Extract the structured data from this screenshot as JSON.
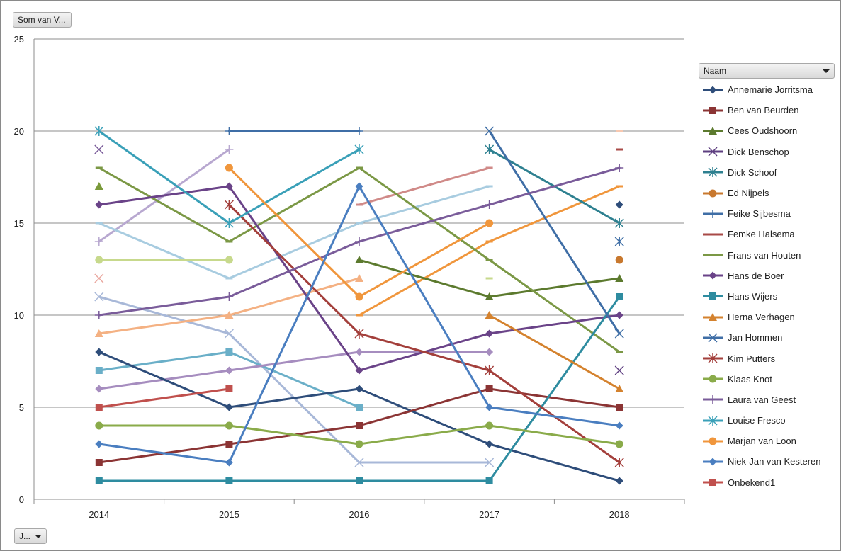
{
  "value_field_label": "Som van V...",
  "axis_field_label": "J...",
  "legend_field_label": "Naam",
  "chart_data": {
    "type": "line",
    "categories": [
      "2014",
      "2015",
      "2016",
      "2017",
      "2018"
    ],
    "ylim": [
      0,
      25
    ],
    "yticks": [
      "0",
      "5",
      "10",
      "15",
      "20",
      "25"
    ],
    "grid": true,
    "legend_position": "right",
    "series": [
      {
        "name": "Annemarie Jorritsma",
        "color": "#2e4d7a",
        "marker": "diamond",
        "values": [
          8,
          5,
          6,
          3,
          1
        ]
      },
      {
        "name": "Ben van Beurden",
        "color": "#8b3434",
        "marker": "square",
        "values": [
          2,
          3,
          4,
          6,
          5
        ]
      },
      {
        "name": "Cees Oudshoorn",
        "color": "#5c7a2e",
        "marker": "triangle",
        "values": [
          null,
          null,
          13,
          11,
          12
        ]
      },
      {
        "name": "Dick Benschop",
        "color": "#5e3f80",
        "marker": "x",
        "values": [
          null,
          null,
          null,
          null,
          7
        ]
      },
      {
        "name": "Dick Schoof",
        "color": "#2e8090",
        "marker": "star",
        "values": [
          null,
          null,
          null,
          19,
          15
        ]
      },
      {
        "name": "Ed Nijpels",
        "color": "#c8782e",
        "marker": "circle",
        "values": [
          null,
          null,
          null,
          null,
          13
        ]
      },
      {
        "name": "Feike Sijbesma",
        "color": "#3f6ea6",
        "marker": "plus",
        "values": [
          null,
          20,
          20,
          null,
          null
        ]
      },
      {
        "name": "Femke Halsema",
        "color": "#a84a47",
        "marker": "dash",
        "values": [
          null,
          null,
          null,
          null,
          19
        ]
      },
      {
        "name": "Frans van Houten",
        "color": "#7b9845",
        "marker": "dash",
        "values": [
          18,
          14,
          18,
          13,
          8
        ]
      },
      {
        "name": "Hans de Boer",
        "color": "#6a4388",
        "marker": "diamond",
        "values": [
          16,
          17,
          7,
          9,
          10
        ]
      },
      {
        "name": "Hans Wijers",
        "color": "#2e8ca0",
        "marker": "square",
        "values": [
          1,
          1,
          1,
          1,
          11
        ]
      },
      {
        "name": "Herna Verhagen",
        "color": "#d4822e",
        "marker": "triangle",
        "values": [
          null,
          null,
          null,
          10,
          6
        ]
      },
      {
        "name": "Jan Hommen",
        "color": "#3f6ea6",
        "marker": "x",
        "values": [
          null,
          null,
          null,
          20,
          9
        ]
      },
      {
        "name": "Kim Putters",
        "color": "#a33f3b",
        "marker": "star",
        "values": [
          null,
          16,
          9,
          7,
          2
        ]
      },
      {
        "name": "Klaas Knot",
        "color": "#8aab4a",
        "marker": "circle",
        "values": [
          4,
          4,
          3,
          4,
          3
        ]
      },
      {
        "name": "Laura van Geest",
        "color": "#7a5c9a",
        "marker": "plus",
        "values": [
          10,
          11,
          14,
          16,
          18
        ]
      },
      {
        "name": "Louise Fresco",
        "color": "#3aa0b8",
        "marker": "star",
        "values": [
          20,
          15,
          19,
          null,
          null
        ]
      },
      {
        "name": "Marjan van Loon",
        "color": "#f0963c",
        "marker": "circle",
        "values": [
          null,
          18,
          11,
          15,
          null
        ]
      },
      {
        "name": "Niek-Jan van Kesteren",
        "color": "#4a7ec0",
        "marker": "diamond",
        "values": [
          3,
          2,
          17,
          5,
          4
        ]
      },
      {
        "name": "Onbekend1",
        "color": "#c0504d",
        "marker": "square",
        "values": [
          5,
          6,
          null,
          null,
          null
        ]
      }
    ],
    "extra_series": [
      {
        "color": "#7a9a3a",
        "marker": "triangle",
        "values": [
          17,
          null,
          null,
          null,
          null
        ]
      },
      {
        "color": "#7a5c9a",
        "marker": "x",
        "values": [
          19,
          null,
          null,
          null,
          null
        ]
      },
      {
        "color": "#b8a8d0",
        "marker": "plus",
        "values": [
          14,
          19,
          null,
          null,
          null
        ]
      },
      {
        "color": "#eaa8a0",
        "marker": "x",
        "values": [
          12,
          null,
          null,
          null,
          null
        ]
      },
      {
        "color": "#a8cce0",
        "marker": "dash",
        "values": [
          15,
          12,
          15,
          17,
          null
        ]
      },
      {
        "color": "#c7d98c",
        "marker": "circle",
        "values": [
          13,
          13,
          null,
          null,
          null
        ]
      },
      {
        "color": "#a8b8d8",
        "marker": "x",
        "values": [
          11,
          9,
          2,
          2,
          null
        ]
      },
      {
        "color": "#f4b183",
        "marker": "triangle",
        "values": [
          9,
          10,
          12,
          null,
          null
        ]
      },
      {
        "color": "#6aafc8",
        "marker": "square",
        "values": [
          7,
          8,
          5,
          null,
          null
        ]
      },
      {
        "color": "#a68dbf",
        "marker": "diamond",
        "values": [
          6,
          7,
          8,
          8,
          null
        ]
      },
      {
        "color": "#f0963c",
        "marker": "dash",
        "values": [
          null,
          null,
          10,
          14,
          17
        ]
      },
      {
        "color": "#d08a88",
        "marker": "dash",
        "values": [
          null,
          null,
          16,
          18,
          null
        ]
      },
      {
        "color": "#c7d98c",
        "marker": "dash",
        "values": [
          null,
          null,
          null,
          12,
          null
        ]
      },
      {
        "color": "#f8c8b0",
        "marker": "dash",
        "values": [
          null,
          null,
          null,
          null,
          20
        ]
      },
      {
        "color": "#3f6ea6",
        "marker": "star",
        "values": [
          null,
          null,
          null,
          null,
          14
        ]
      },
      {
        "color": "#2e4d7a",
        "marker": "diamond",
        "values": [
          null,
          null,
          null,
          null,
          16
        ]
      }
    ]
  }
}
